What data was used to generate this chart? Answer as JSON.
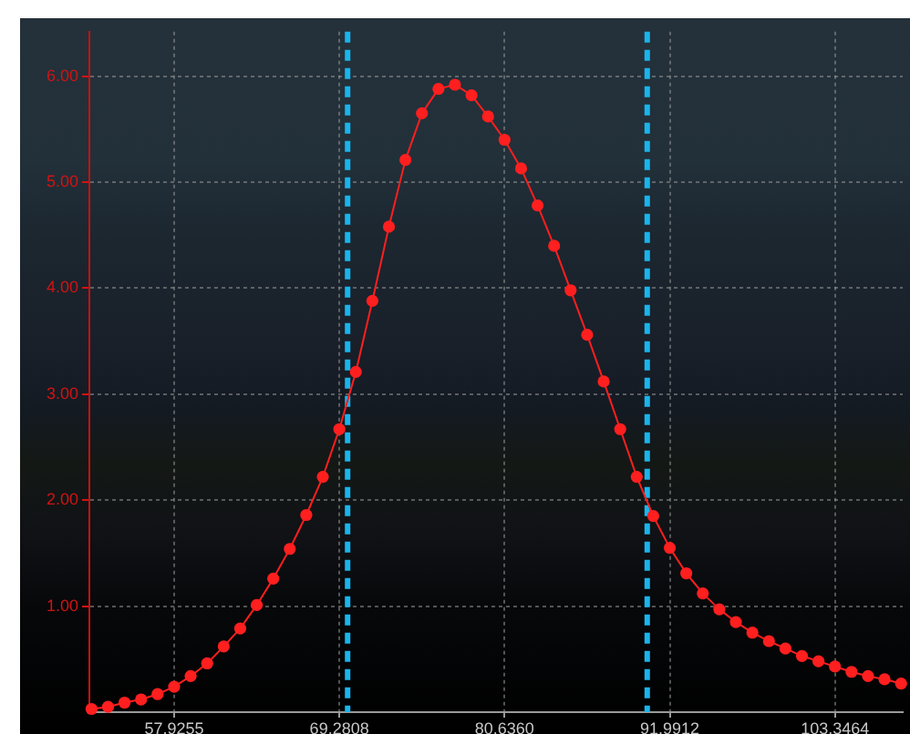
{
  "chart_data": {
    "type": "line",
    "x": [
      52.2479,
      53.3834,
      54.519,
      55.6545,
      56.79,
      57.9255,
      59.061,
      60.1966,
      61.3321,
      62.4676,
      63.6031,
      64.7387,
      65.8742,
      67.0097,
      68.1453,
      69.2808,
      70.4163,
      71.5518,
      72.6874,
      73.8229,
      74.9584,
      76.0939,
      77.2295,
      78.365,
      79.5005,
      80.636,
      81.7715,
      82.9071,
      84.0426,
      85.1781,
      86.3136,
      87.4492,
      88.5847,
      89.7202,
      90.8557,
      91.9912,
      93.1268,
      94.2623,
      95.3978,
      96.5333,
      97.6688,
      98.8044,
      99.9399,
      101.0754,
      102.2109,
      103.3464,
      104.482,
      105.6175,
      106.753,
      107.8885
    ],
    "series": [
      {
        "color": "#ff1f1f",
        "values": [
          0.03,
          0.05,
          0.09,
          0.12,
          0.17,
          0.24,
          0.34,
          0.46,
          0.62,
          0.79,
          1.01,
          1.26,
          1.54,
          1.86,
          2.22,
          2.67,
          3.21,
          3.88,
          4.58,
          5.21,
          5.65,
          5.88,
          5.92,
          5.82,
          5.62,
          5.4,
          5.13,
          4.78,
          4.4,
          3.98,
          3.56,
          3.12,
          2.67,
          2.22,
          1.85,
          1.55,
          1.31,
          1.12,
          0.97,
          0.85,
          0.75,
          0.67,
          0.6,
          0.53,
          0.48,
          0.43,
          0.38,
          0.34,
          0.31,
          0.27
        ]
      }
    ],
    "xlim": [
      52.1,
      108.0
    ],
    "ylim": [
      0,
      6.42
    ],
    "xticks": [
      57.9255,
      69.2808,
      {
        "value": 80.636,
        "label": "80.6360"
      },
      {
        "value": 91.9912,
        "label": "91.9912"
      },
      103.3464
    ],
    "yticks": [
      {
        "value": 1,
        "label": "1.00"
      },
      {
        "value": 2,
        "label": "2.00"
      },
      {
        "value": 3,
        "label": "3.00"
      },
      {
        "value": 4,
        "label": "4.00"
      },
      {
        "value": 5,
        "label": "5.00"
      },
      {
        "value": 6,
        "label": "6.00"
      }
    ],
    "ref_lines": [
      {
        "axis": "x",
        "value": 69.85,
        "color": "#1ab4ec",
        "line_style": "dashed"
      },
      {
        "axis": "x",
        "value": 90.44,
        "color": "#1ab4ec",
        "line_style": "dashed"
      }
    ],
    "grid": true,
    "legend": false,
    "marker": "circle",
    "line_style": "solid"
  }
}
